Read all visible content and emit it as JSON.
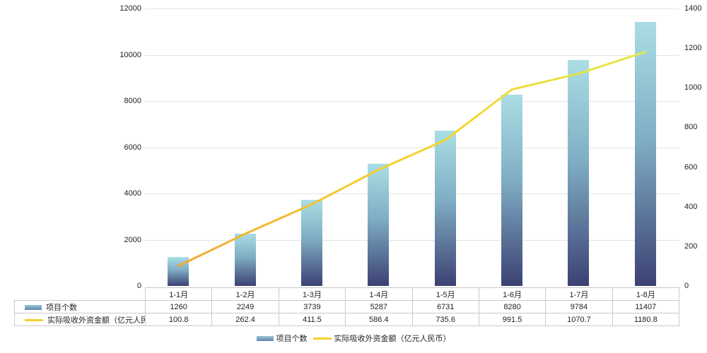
{
  "chart_data": {
    "type": "combo",
    "categories": [
      "1-1月",
      "1-2月",
      "1-3月",
      "1-4月",
      "1-5月",
      "1-6月",
      "1-7月",
      "1-8月"
    ],
    "series": [
      {
        "name": "项目个数",
        "type": "bar",
        "axis": "left",
        "values": [
          1260,
          2249,
          3739,
          5287,
          6731,
          8280,
          9784,
          11407
        ]
      },
      {
        "name": "实际吸收外资金额（亿元人民币）",
        "type": "line",
        "axis": "right",
        "values": [
          100.8,
          262.4,
          411.5,
          586.4,
          735.6,
          991.5,
          1070.7,
          1180.8
        ]
      }
    ],
    "left_axis": {
      "min": 0,
      "max": 12000,
      "tick_step": 2000,
      "ticks": [
        12000,
        10000,
        8000,
        6000,
        4000,
        2000,
        0
      ]
    },
    "right_axis": {
      "min": 0,
      "max": 1400,
      "tick_step": 200,
      "ticks": [
        1400,
        1200,
        1000,
        800,
        600,
        400,
        200,
        0
      ]
    },
    "grid": true,
    "legend_position": "bottom",
    "title": ""
  },
  "colors": {
    "bar_gradient_top": "#aadee4",
    "bar_gradient_mid": "#7fadc4",
    "bar_gradient_bottom": "#3c4173",
    "line_gradient_start": "#f0a232",
    "line_gradient_mid": "#f5d02f",
    "line_gradient_end": "#dfee49",
    "gridline": "#e4e4e8",
    "table_border": "#c9c9c9",
    "text": "#222222",
    "background": "#ffffff"
  }
}
